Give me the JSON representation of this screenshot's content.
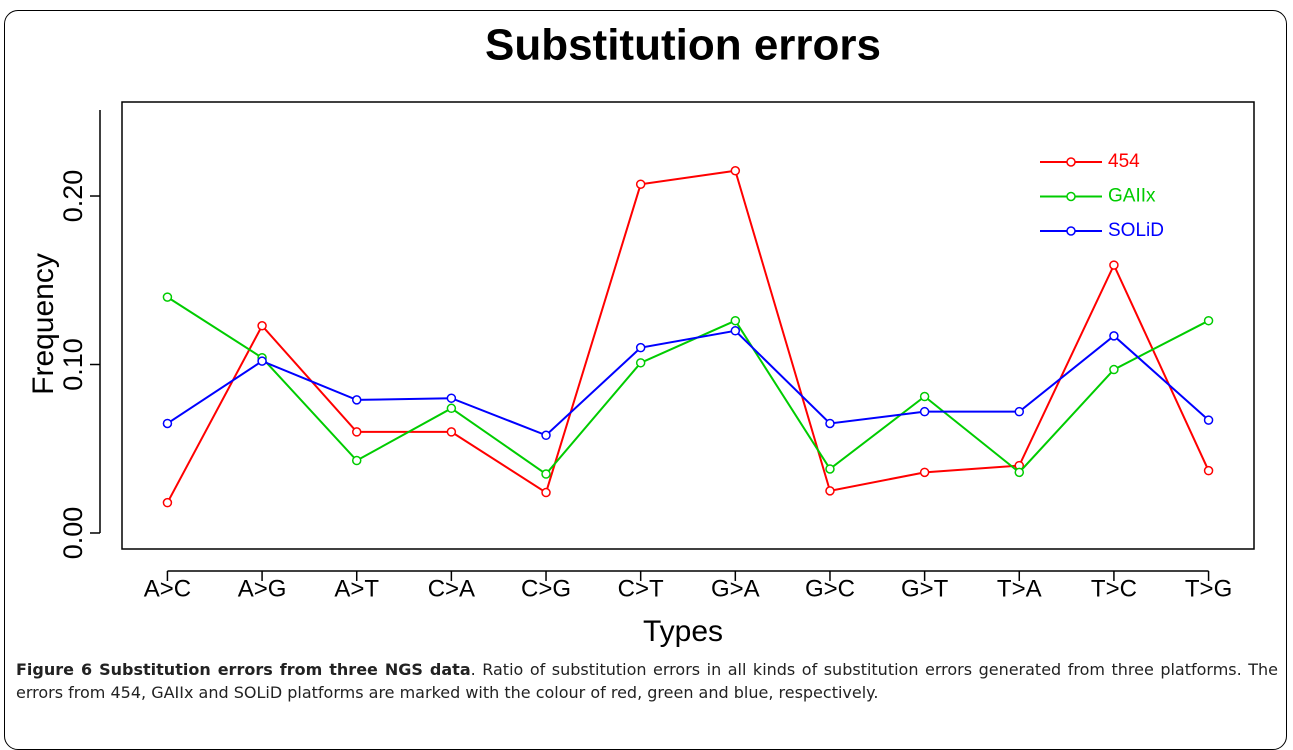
{
  "chart_data": {
    "type": "line",
    "title": "Substitution errors",
    "x_label": "Types",
    "y_label": "Frequency",
    "categories": [
      "A>C",
      "A>G",
      "A>T",
      "C>A",
      "C>G",
      "C>T",
      "G>A",
      "G>C",
      "G>T",
      "T>A",
      "T>C",
      "T>G"
    ],
    "series": [
      {
        "name": "454",
        "color": "#ff0000",
        "values": [
          0.018,
          0.123,
          0.06,
          0.06,
          0.024,
          0.207,
          0.215,
          0.025,
          0.036,
          0.04,
          0.159,
          0.037
        ]
      },
      {
        "name": "GAIIx",
        "color": "#00cc00",
        "values": [
          0.14,
          0.104,
          0.043,
          0.074,
          0.035,
          0.101,
          0.126,
          0.038,
          0.081,
          0.036,
          0.097,
          0.126
        ]
      },
      {
        "name": "SOLiD",
        "color": "#0000ff",
        "values": [
          0.065,
          0.102,
          0.079,
          0.08,
          0.058,
          0.11,
          0.12,
          0.065,
          0.072,
          0.072,
          0.117,
          0.067
        ]
      }
    ],
    "ylim": [
      -0.0095,
      0.2558
    ],
    "yticks": [
      {
        "value": 0,
        "label": "0.00"
      },
      {
        "value": 0.1,
        "label": "0.10"
      },
      {
        "value": 0.2,
        "label": "0.20"
      }
    ],
    "legend": "top-right",
    "grid": false
  },
  "caption": {
    "label": "Figure 6 Substitution errors from three NGS data",
    "text": ". Ratio of substitution errors in all kinds of substitution errors generated from three platforms. The errors from 454, GAIIx and SOLiD platforms are marked with the colour of red, green and blue, respectively."
  }
}
